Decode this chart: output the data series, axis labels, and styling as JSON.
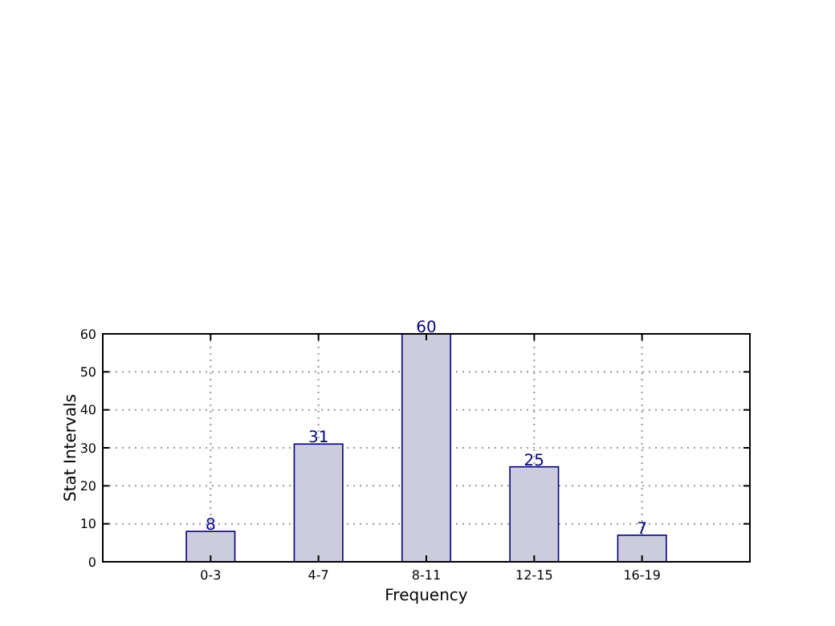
{
  "chart_data": {
    "type": "bar",
    "xlabel": "Frequency",
    "ylabel": "Stat Intervals",
    "categories": [
      "0-3",
      "4-7",
      "8-11",
      "12-15",
      "16-19"
    ],
    "values": [
      8,
      31,
      60,
      25,
      7
    ],
    "color": "#ccccdd",
    "ylim": [
      0,
      60
    ],
    "yticks": [
      0,
      10,
      20,
      30,
      40,
      50,
      60
    ],
    "grid": true,
    "data_labels": true
  }
}
